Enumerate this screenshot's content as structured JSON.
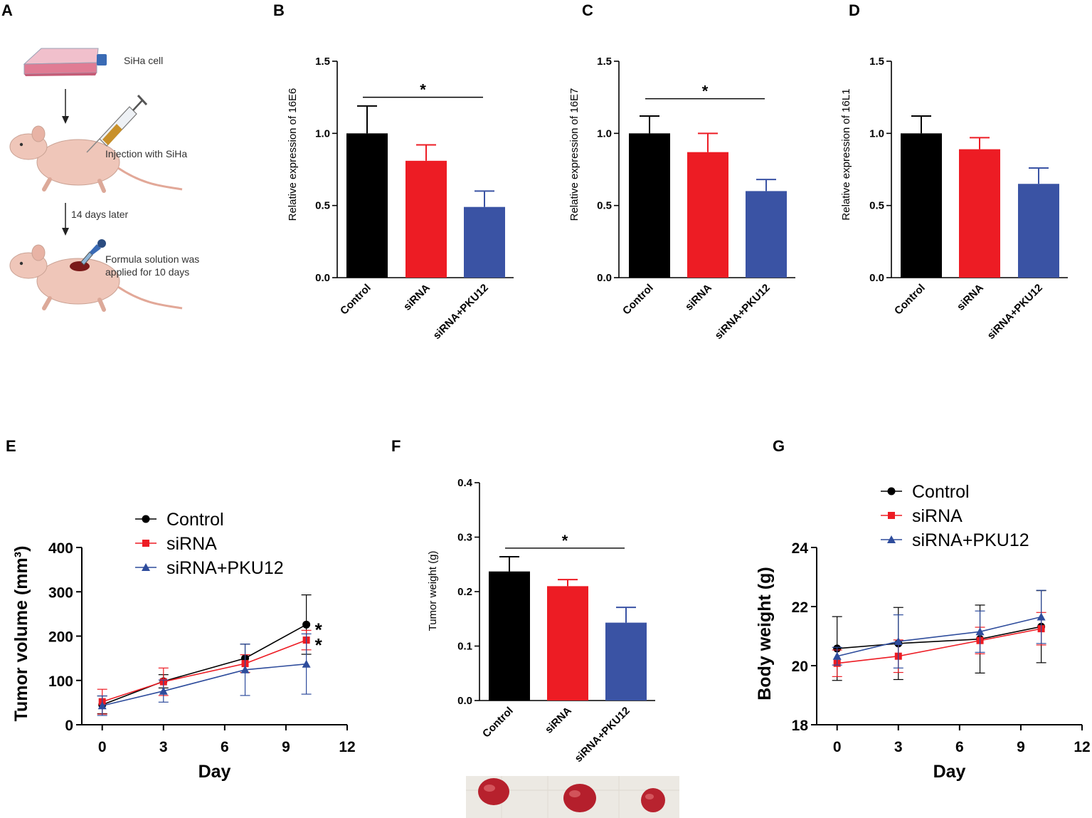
{
  "panel_labels": {
    "A": "A",
    "B": "B",
    "C": "C",
    "D": "D",
    "E": "E",
    "F": "F",
    "G": "G"
  },
  "schematic": {
    "step1": "SiHa cell",
    "step2": "Injection with SiHa",
    "interval": "14 days later",
    "step3_line1": "Formula solution  was",
    "step3_line2": "applied  for 10 days",
    "icons": [
      "cell-flask-icon",
      "mouse-icon",
      "syringe-icon",
      "dropper-icon",
      "down-arrow-icon"
    ]
  },
  "colors": {
    "control": "#000000",
    "sirna": "#ED1C24",
    "pku12": "#3A53A4",
    "pku12_line": "#2E4C9C"
  },
  "chart_data": [
    {
      "panel": "B",
      "type": "bar",
      "ylabel": "Relative expression of 16E6",
      "categories": [
        "Control",
        "siRNA",
        "siRNA+PKU12"
      ],
      "values": [
        1.0,
        0.81,
        0.49
      ],
      "errors": [
        0.19,
        0.11,
        0.11
      ],
      "ylim": [
        0,
        1.5
      ],
      "yticks": [
        "0.0",
        "0.5",
        "1.0",
        "1.5"
      ],
      "tick_values": [
        0,
        0.5,
        1.0,
        1.5
      ],
      "significance": {
        "from": 0,
        "to": 2,
        "label": "*",
        "y": 1.27
      }
    },
    {
      "panel": "C",
      "type": "bar",
      "ylabel": "Relative expression of 16E7",
      "categories": [
        "Control",
        "siRNA",
        "siRNA+PKU12"
      ],
      "values": [
        1.0,
        0.87,
        0.6
      ],
      "errors": [
        0.12,
        0.13,
        0.08
      ],
      "ylim": [
        0,
        1.5
      ],
      "yticks": [
        "0.0",
        "0.5",
        "1.0",
        "1.5"
      ],
      "tick_values": [
        0,
        0.5,
        1.0,
        1.5
      ],
      "significance": {
        "from": 0,
        "to": 2,
        "label": "*",
        "y": 1.26
      }
    },
    {
      "panel": "D",
      "type": "bar",
      "ylabel": "Relative expression of 16L1",
      "categories": [
        "Control",
        "siRNA",
        "siRNA+PKU12"
      ],
      "values": [
        1.0,
        0.89,
        0.65
      ],
      "errors": [
        0.12,
        0.08,
        0.11
      ],
      "ylim": [
        0,
        1.5
      ],
      "yticks": [
        "0.0",
        "0.5",
        "1.0",
        "1.5"
      ],
      "tick_values": [
        0,
        0.5,
        1.0,
        1.5
      ],
      "significance": null
    },
    {
      "panel": "E",
      "type": "line",
      "xlabel": "Day",
      "ylabel": "Tumor volume (mm³)",
      "x": [
        0,
        3,
        7,
        10
      ],
      "xlim": [
        -1,
        12
      ],
      "xticks": [
        "0",
        "3",
        "6",
        "9",
        "12"
      ],
      "xtick_values": [
        0,
        3,
        6,
        9,
        12
      ],
      "ylim": [
        0,
        400
      ],
      "yticks": [
        "0",
        "100",
        "200",
        "300",
        "400"
      ],
      "tick_values": [
        0,
        100,
        200,
        300,
        400
      ],
      "series": [
        {
          "name": "Control",
          "values": [
            45,
            98,
            150,
            226
          ],
          "errors": [
            20,
            15,
            32,
            67
          ],
          "marker": "circle"
        },
        {
          "name": "siRNA",
          "values": [
            52,
            97,
            138,
            191
          ],
          "errors": [
            28,
            31,
            20,
            22
          ],
          "marker": "square"
        },
        {
          "name": "siRNA+PKU12",
          "values": [
            43,
            76,
            124,
            137
          ],
          "errors": [
            22,
            25,
            58,
            68
          ],
          "marker": "triangle"
        }
      ],
      "annotations": [
        {
          "x": 10,
          "y": 226,
          "label": "*"
        },
        {
          "x": 10,
          "y": 191,
          "label": "*"
        }
      ]
    },
    {
      "panel": "F",
      "type": "bar",
      "ylabel": "Tumor weight (g)",
      "categories": [
        "Control",
        "siRNA",
        "siRNA+PKU12"
      ],
      "values": [
        0.237,
        0.21,
        0.143
      ],
      "errors": [
        0.027,
        0.012,
        0.028
      ],
      "ylim": [
        0,
        0.4
      ],
      "yticks": [
        "0.0",
        "0.1",
        "0.2",
        "0.3",
        "0.4"
      ],
      "tick_values": [
        0,
        0.1,
        0.2,
        0.3,
        0.4
      ],
      "significance": {
        "from": 0,
        "to": 2,
        "label": "*",
        "y": 0.285
      }
    },
    {
      "panel": "G",
      "type": "line",
      "xlabel": "Day",
      "ylabel": "Body weight (g)",
      "x": [
        0,
        3,
        7,
        10
      ],
      "xlim": [
        -1,
        12
      ],
      "xticks": [
        "0",
        "3",
        "6",
        "9",
        "12"
      ],
      "xtick_values": [
        0,
        3,
        6,
        9,
        12
      ],
      "ylim": [
        18,
        24
      ],
      "yticks": [
        "18",
        "20",
        "22",
        "24"
      ],
      "tick_values": [
        18,
        20,
        22,
        24
      ],
      "series": [
        {
          "name": "Control",
          "values": [
            20.58,
            20.75,
            20.9,
            21.32
          ],
          "errors": [
            1.08,
            1.22,
            1.15,
            1.22
          ],
          "marker": "circle"
        },
        {
          "name": "siRNA",
          "values": [
            20.08,
            20.32,
            20.85,
            21.25
          ],
          "errors": [
            0.45,
            0.55,
            0.45,
            0.55
          ],
          "marker": "square"
        },
        {
          "name": "siRNA+PKU12",
          "values": [
            20.32,
            20.82,
            21.15,
            21.65
          ],
          "errors": [
            0.3,
            0.9,
            0.7,
            0.9
          ],
          "marker": "triangle"
        }
      ],
      "annotations": []
    }
  ]
}
